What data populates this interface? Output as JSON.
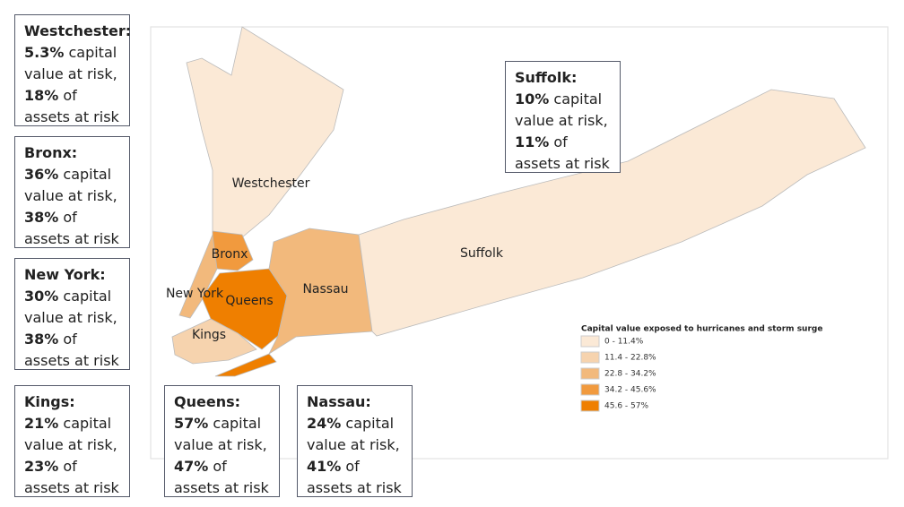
{
  "callouts": [
    {
      "name": "Westchester:",
      "capital": "5.3%",
      "capital_text": "capital value at risk,",
      "assets": "18%",
      "assets_text": "of assets at risk"
    },
    {
      "name": "Bronx:",
      "capital": "36%",
      "capital_text": "capital value at risk,",
      "assets": "38%",
      "assets_text": "of assets at risk"
    },
    {
      "name": "New York:",
      "capital": "30%",
      "capital_text": "capital value at risk,",
      "assets": "38%",
      "assets_text": "of assets at risk"
    },
    {
      "name": "Kings:",
      "capital": "21%",
      "capital_text": "capital value at risk,",
      "assets": "23%",
      "assets_text": "of assets at risk"
    },
    {
      "name": "Queens:",
      "capital": "57%",
      "capital_text": "capital value at risk,",
      "assets": "47%",
      "assets_text": "of assets at risk"
    },
    {
      "name": "Nassau:",
      "capital": "24%",
      "capital_text": "capital value at risk,",
      "assets": "41%",
      "assets_text": "of assets at risk"
    },
    {
      "name": "Suffolk:",
      "capital": "10%",
      "capital_text": "capital value at risk,",
      "assets": "11%",
      "assets_text": "of assets at risk"
    }
  ],
  "regions": [
    {
      "label": "Westchester",
      "color": "#fbe9d6"
    },
    {
      "label": "Bronx",
      "color": "#f19a3e"
    },
    {
      "label": "New York",
      "color": "#f2b97c"
    },
    {
      "label": "Kings",
      "color": "#f6d3ae"
    },
    {
      "label": "Queens",
      "color": "#ef7f00"
    },
    {
      "label": "Nassau",
      "color": "#f2b97c"
    },
    {
      "label": "Suffolk",
      "color": "#fbe9d6"
    }
  ],
  "legend": {
    "title": "Capital value exposed to hurricanes and storm surge",
    "items": [
      {
        "label": "0 - 11.4%",
        "color": "#fbe9d6"
      },
      {
        "label": "11.4 - 22.8%",
        "color": "#f6d3ae"
      },
      {
        "label": "22.8 - 34.2%",
        "color": "#f2b97c"
      },
      {
        "label": "34.2 - 45.6%",
        "color": "#f19a3e"
      },
      {
        "label": "45.6 - 57%",
        "color": "#ef7f00"
      }
    ]
  }
}
